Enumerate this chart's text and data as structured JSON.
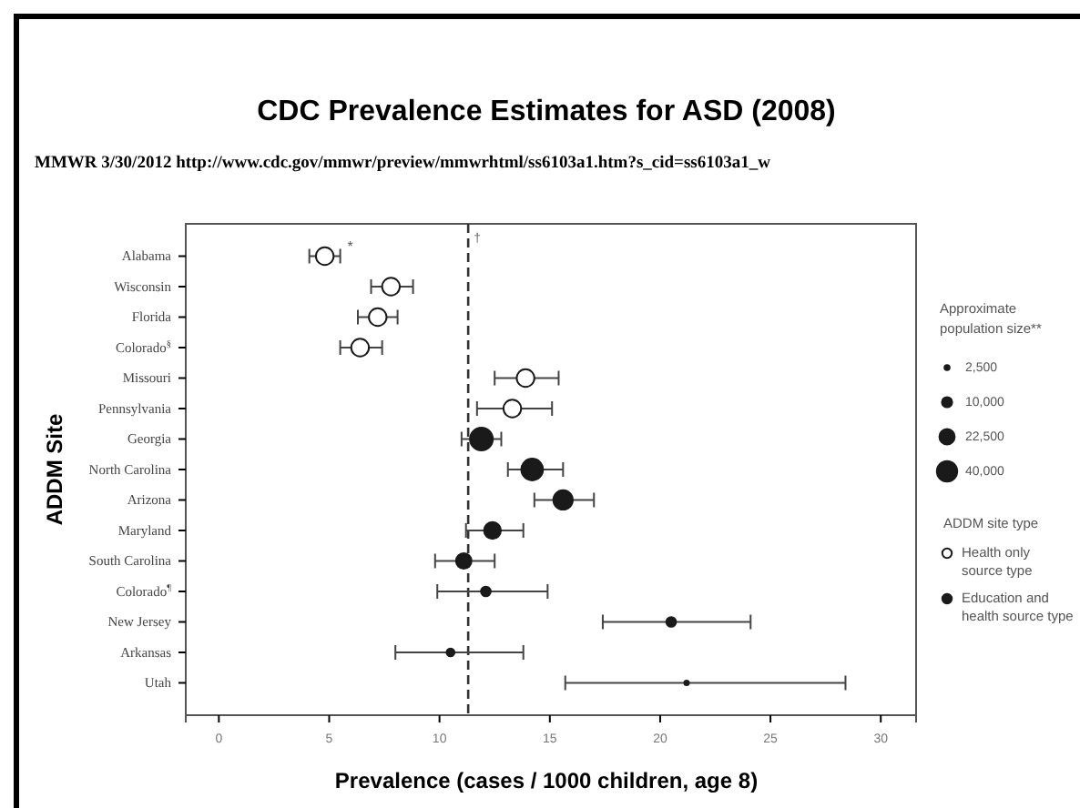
{
  "chart_data": {
    "type": "bubble",
    "orientation": "horizontal",
    "title": "CDC Prevalence Estimates for ASD (2008)",
    "subtitle": "MMWR 3/30/2012 http://www.cdc.gov/mmwr/preview/mmwrhtml/ss6103a1.htm?s_cid=ss6103a1_w",
    "xlabel": "Prevalence (cases / 1000 children, age 8)",
    "ylabel": "ADDM Site",
    "legend_title": "ADDM site type",
    "categories": [
      "Alabama",
      "Wisconsin",
      "Florida",
      "Colorado$^{§}$",
      "Missouri",
      "Pennsylvania",
      "Georgia",
      "North Carolina",
      "Arizona",
      "Maryland",
      "South Carolina",
      "Colorado$^{¶}$",
      "New Jersey",
      "Arkansas",
      "Utah"
    ],
    "xlim": [
      -1.5,
      31.6
    ],
    "xticks": [
      0,
      5,
      10,
      15,
      20,
      25,
      30
    ],
    "size_legend": [
      {
        "value": 2500,
        "label": "2,500"
      },
      {
        "value": 10000,
        "label": "10,000"
      },
      {
        "value": 22500,
        "label": "22,500"
      },
      {
        "value": 40000,
        "label": "40,000"
      }
    ],
    "marker": "circle",
    "legend": "right",
    "grid": false,
    "series": [
      {
        "name": "Health only source type",
        "color": "#ffffff",
        "values": [
          4.8,
          7.8,
          7.2,
          6.4,
          13.9,
          13.3,
          null,
          null,
          null,
          null,
          null,
          null,
          null,
          null,
          null
        ],
        "sizes": [
          30000,
          30000,
          30000,
          30000,
          30000,
          30000,
          null,
          null,
          null,
          null,
          null,
          null,
          null,
          null,
          null
        ],
        "errors": [
          [
            4.1,
            5.5
          ],
          [
            6.9,
            8.8
          ],
          [
            6.3,
            8.1
          ],
          [
            5.5,
            7.4
          ],
          [
            12.5,
            15.4
          ],
          [
            11.7,
            15.1
          ],
          null,
          null,
          null,
          null,
          null,
          null,
          null,
          null,
          null
        ]
      },
      {
        "name": "Education and health source type",
        "color": "#1a1a1a",
        "values": [
          null,
          null,
          null,
          null,
          null,
          null,
          11.9,
          14.2,
          15.6,
          12.4,
          11.1,
          12.1,
          20.5,
          10.5,
          21.2
        ],
        "sizes": [
          null,
          null,
          null,
          null,
          null,
          null,
          50000,
          45000,
          36000,
          27000,
          23000,
          9000,
          9000,
          6000,
          2000
        ],
        "errors": [
          null,
          null,
          null,
          null,
          null,
          null,
          [
            11.0,
            12.8
          ],
          [
            13.1,
            15.6
          ],
          [
            14.3,
            17.0
          ],
          [
            11.2,
            13.8
          ],
          [
            9.8,
            12.5
          ],
          [
            9.9,
            14.9
          ],
          [
            17.4,
            24.1
          ],
          [
            8.0,
            13.8
          ],
          [
            15.7,
            28.4
          ]
        ]
      }
    ],
    "ref_lines": [
      {
        "axis": "x",
        "value": 11.3,
        "label": "†",
        "line_style": "dashed",
        "color": "#333333"
      }
    ],
    "annotations": [
      "Approximate population size**",
      {
        "text": "*",
        "x": 5.5,
        "y": "Alabama"
      }
    ]
  }
}
